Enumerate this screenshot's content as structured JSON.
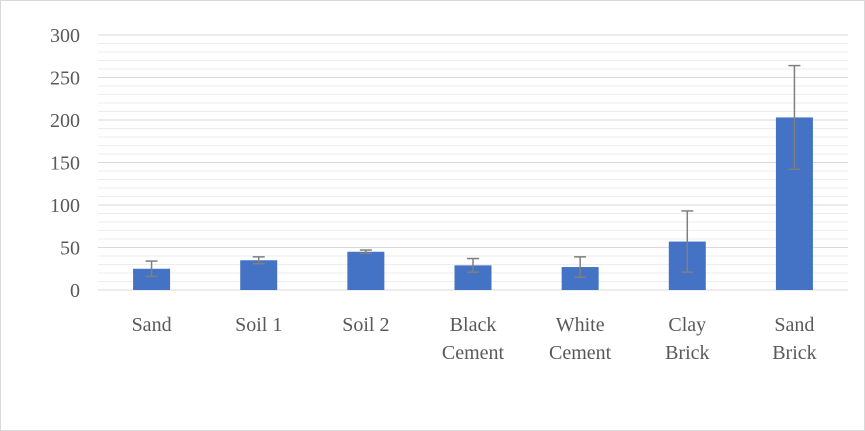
{
  "chart_data": {
    "type": "bar",
    "title": "",
    "xlabel": "",
    "ylabel": "",
    "ylim": [
      0,
      300
    ],
    "y_ticks": [
      0,
      50,
      100,
      150,
      200,
      250,
      300
    ],
    "minor_gridlines": true,
    "legend": "none",
    "categories": [
      [
        "Sand"
      ],
      [
        "Soil 1"
      ],
      [
        "Soil 2"
      ],
      [
        "Black",
        "Cement"
      ],
      [
        "White",
        "Cement"
      ],
      [
        "Clay",
        "Brick"
      ],
      [
        "Sand",
        "Brick"
      ]
    ],
    "series": [
      {
        "values": [
          25,
          35,
          45,
          29,
          27,
          57,
          203
        ],
        "error": [
          9,
          4,
          2,
          8,
          12,
          36,
          61
        ]
      }
    ],
    "colors": {
      "bar": "#4472c4",
      "error_bar": "#7f7f7f",
      "major_grid": "#d9d9d9",
      "minor_grid": "#ededed",
      "axis": "#d9d9d9"
    }
  }
}
